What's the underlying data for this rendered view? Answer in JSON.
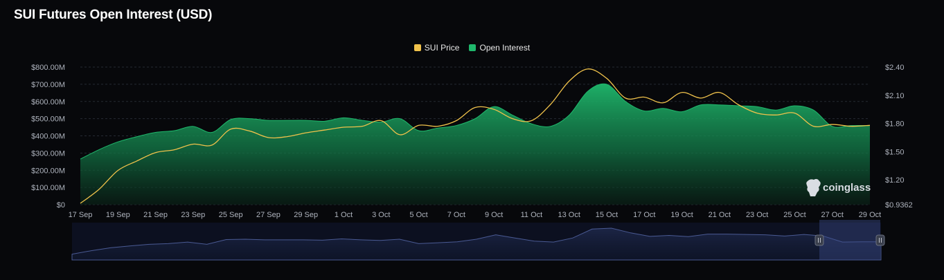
{
  "title": "SUI Futures Open Interest (USD)",
  "watermark": "coinglass",
  "colors": {
    "price": "#f0c24b",
    "open_interest": "#1fb86c",
    "background": "#07080b",
    "navigator": "#4a5a93"
  },
  "chart_data": {
    "type": "area",
    "x": [
      "17 Sep",
      "18 Sep",
      "19 Sep",
      "20 Sep",
      "21 Sep",
      "22 Sep",
      "23 Sep",
      "24 Sep",
      "25 Sep",
      "26 Sep",
      "27 Sep",
      "28 Sep",
      "29 Sep",
      "30 Sep",
      "1 Oct",
      "2 Oct",
      "3 Oct",
      "4 Oct",
      "5 Oct",
      "6 Oct",
      "7 Oct",
      "8 Oct",
      "9 Oct",
      "10 Oct",
      "11 Oct",
      "12 Oct",
      "13 Oct",
      "14 Oct",
      "15 Oct",
      "16 Oct",
      "17 Oct",
      "18 Oct",
      "19 Oct",
      "20 Oct",
      "21 Oct",
      "22 Oct",
      "23 Oct",
      "24 Oct",
      "25 Oct",
      "26 Oct",
      "27 Oct",
      "28 Oct",
      "29 Oct"
    ],
    "x_tick_labels": [
      "17 Sep",
      "19 Sep",
      "21 Sep",
      "23 Sep",
      "25 Sep",
      "27 Sep",
      "29 Sep",
      "1 Oct",
      "3 Oct",
      "5 Oct",
      "7 Oct",
      "9 Oct",
      "11 Oct",
      "13 Oct",
      "15 Oct",
      "17 Oct",
      "19 Oct",
      "21 Oct",
      "23 Oct",
      "25 Oct",
      "27 Oct",
      "29 Oct"
    ],
    "series": [
      {
        "name": "Open Interest",
        "axis": "left",
        "style": "area",
        "color": "#1fb86c",
        "values": [
          265,
          320,
          365,
          395,
          420,
          430,
          455,
          420,
          495,
          500,
          490,
          490,
          490,
          485,
          505,
          490,
          480,
          500,
          430,
          445,
          460,
          500,
          570,
          520,
          470,
          455,
          520,
          660,
          700,
          600,
          545,
          560,
          540,
          580,
          580,
          575,
          570,
          550,
          575,
          550,
          455,
          460,
          460
        ]
      },
      {
        "name": "SUI Price",
        "axis": "right",
        "style": "line",
        "color": "#f0c24b",
        "values": [
          0.95,
          1.1,
          1.3,
          1.4,
          1.49,
          1.52,
          1.58,
          1.57,
          1.74,
          1.72,
          1.65,
          1.66,
          1.7,
          1.73,
          1.76,
          1.77,
          1.83,
          1.68,
          1.78,
          1.77,
          1.83,
          1.97,
          1.95,
          1.85,
          1.83,
          2.0,
          2.25,
          2.38,
          2.28,
          2.07,
          2.08,
          2.02,
          2.13,
          2.07,
          2.13,
          2.0,
          1.91,
          1.89,
          1.91,
          1.77,
          1.79,
          1.77,
          1.78
        ]
      }
    ],
    "y_left": {
      "ticks": [
        "$0",
        "$100.00M",
        "$200.00M",
        "$300.00M",
        "$400.00M",
        "$500.00M",
        "$600.00M",
        "$700.00M",
        "$800.00M"
      ],
      "range": [
        0,
        800
      ]
    },
    "y_right": {
      "ticks": [
        "$0.9362",
        "$1.20",
        "$1.50",
        "$1.80",
        "$2.10",
        "$2.40"
      ],
      "range": [
        0.9362,
        2.4
      ]
    },
    "legend": {
      "placement": "top-center",
      "entries": [
        "SUI Price",
        "Open Interest"
      ]
    },
    "grid": true
  }
}
